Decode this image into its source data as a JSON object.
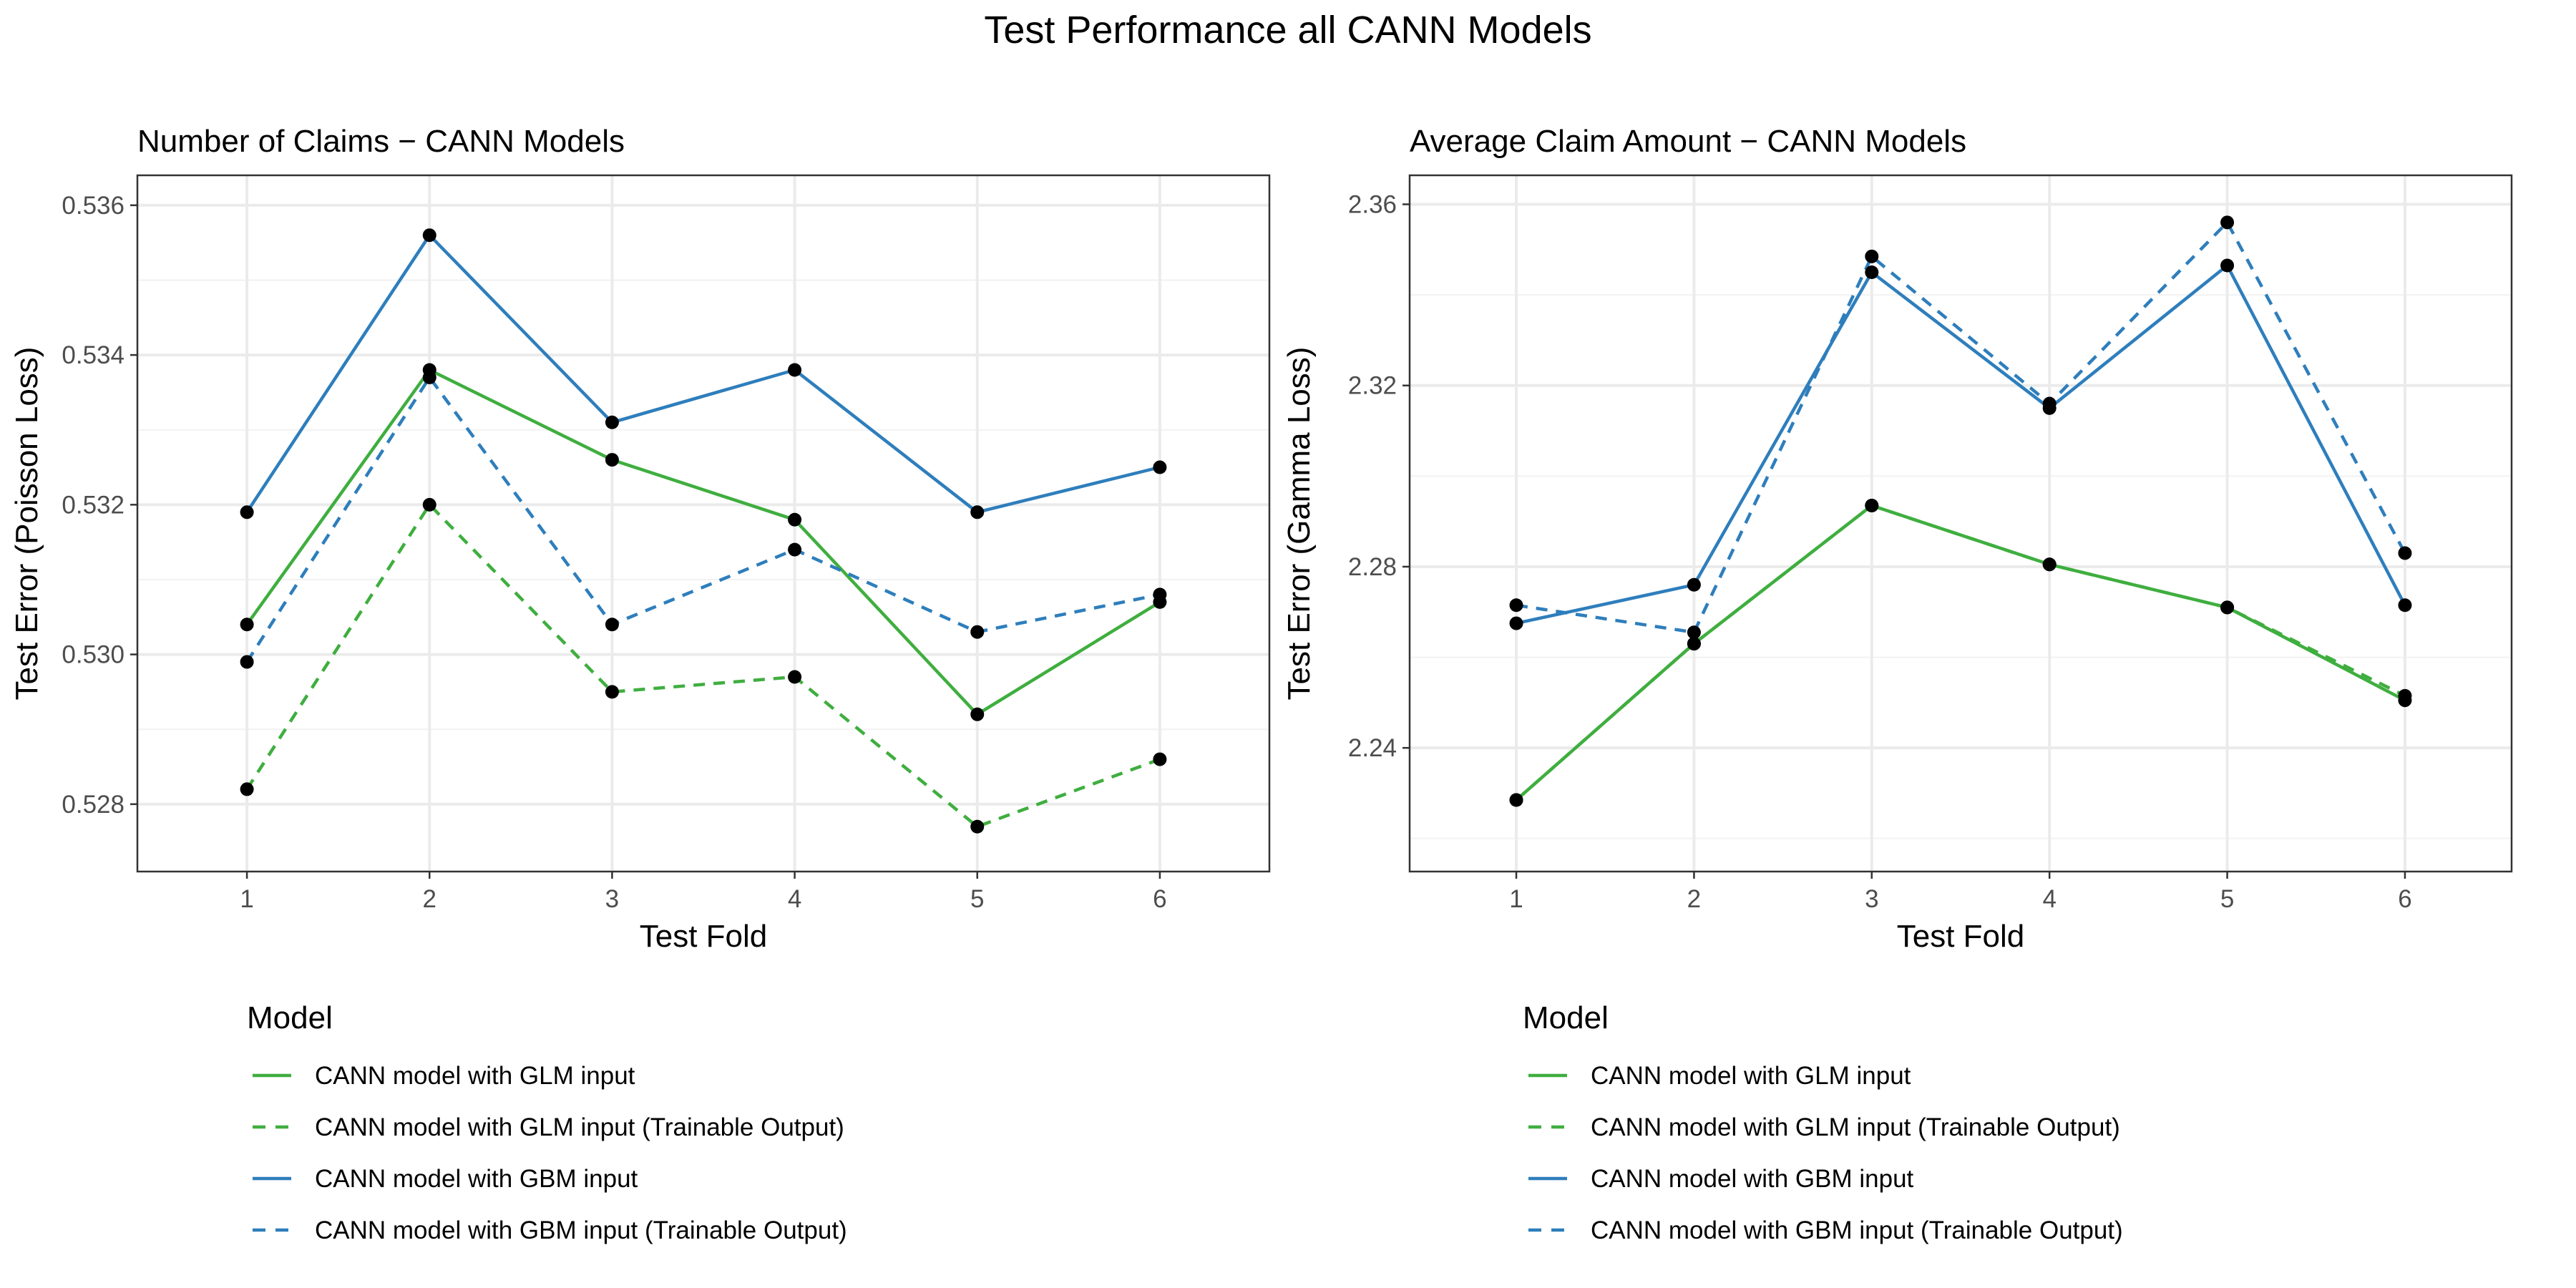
{
  "figure": {
    "title": "Test Performance all CANN Models"
  },
  "series_styles": [
    {
      "name": "CANN model with GLM input",
      "color": "#3fae3f",
      "dash": "solid"
    },
    {
      "name": "CANN model with GLM input (Trainable Output)",
      "color": "#3fae3f",
      "dash": "dashed"
    },
    {
      "name": "CANN model with GBM input",
      "color": "#2e7ebc",
      "dash": "solid"
    },
    {
      "name": "CANN model with GBM input (Trainable Output)",
      "color": "#2e7ebc",
      "dash": "dashed"
    }
  ],
  "point_color": "#000000",
  "chart_data": [
    {
      "type": "line",
      "title": "Number of Claims − CANN Models",
      "xlabel": "Test Fold",
      "ylabel": "Test Error (Poisson Loss)",
      "x": [
        1,
        2,
        3,
        4,
        5,
        6
      ],
      "xlim": [
        0.4,
        6.6
      ],
      "ylim": [
        0.5271,
        0.5364
      ],
      "yticks": [
        0.528,
        0.53,
        0.532,
        0.534,
        0.536
      ],
      "ytick_labels": [
        "0.528",
        "0.530",
        "0.532",
        "0.534",
        "0.536"
      ],
      "grid": true,
      "legend": {
        "title": "Model",
        "placement": "bottom"
      },
      "series": [
        {
          "name": "CANN model with GLM input",
          "values": [
            0.5304,
            0.5338,
            0.5326,
            0.5318,
            0.5292,
            0.5307
          ]
        },
        {
          "name": "CANN model with GLM input (Trainable Output)",
          "values": [
            0.5282,
            0.532,
            0.5295,
            0.5297,
            0.5277,
            0.5286
          ]
        },
        {
          "name": "CANN model with GBM input",
          "values": [
            0.5319,
            0.5356,
            0.5331,
            0.5338,
            0.5319,
            0.5325
          ]
        },
        {
          "name": "CANN model with GBM input (Trainable Output)",
          "values": [
            0.5299,
            0.5337,
            0.5304,
            0.5314,
            0.5303,
            0.5308
          ]
        }
      ]
    },
    {
      "type": "line",
      "title": "Average Claim Amount − CANN Models",
      "xlabel": "Test Fold",
      "ylabel": "Test Error (Gamma Loss)",
      "x": [
        1,
        2,
        3,
        4,
        5,
        6
      ],
      "xlim": [
        0.4,
        6.6
      ],
      "ylim": [
        2.2127,
        2.3664
      ],
      "yticks": [
        2.24,
        2.28,
        2.32,
        2.36
      ],
      "ytick_labels": [
        "2.24",
        "2.28",
        "2.32",
        "2.36"
      ],
      "grid": true,
      "legend": {
        "title": "Model",
        "placement": "bottom"
      },
      "series": [
        {
          "name": "CANN model with GLM input",
          "values": [
            2.2285,
            2.263,
            2.2935,
            2.2805,
            2.271,
            2.2505
          ]
        },
        {
          "name": "CANN model with GLM input (Trainable Output)",
          "values": [
            2.2285,
            2.263,
            2.2935,
            2.2805,
            2.271,
            2.2515
          ]
        },
        {
          "name": "CANN model with GBM input",
          "values": [
            2.2675,
            2.276,
            2.345,
            2.315,
            2.3465,
            2.2715
          ]
        },
        {
          "name": "CANN model with GBM input (Trainable Output)",
          "values": [
            2.2715,
            2.2655,
            2.3485,
            2.316,
            2.356,
            2.283
          ]
        }
      ]
    }
  ]
}
